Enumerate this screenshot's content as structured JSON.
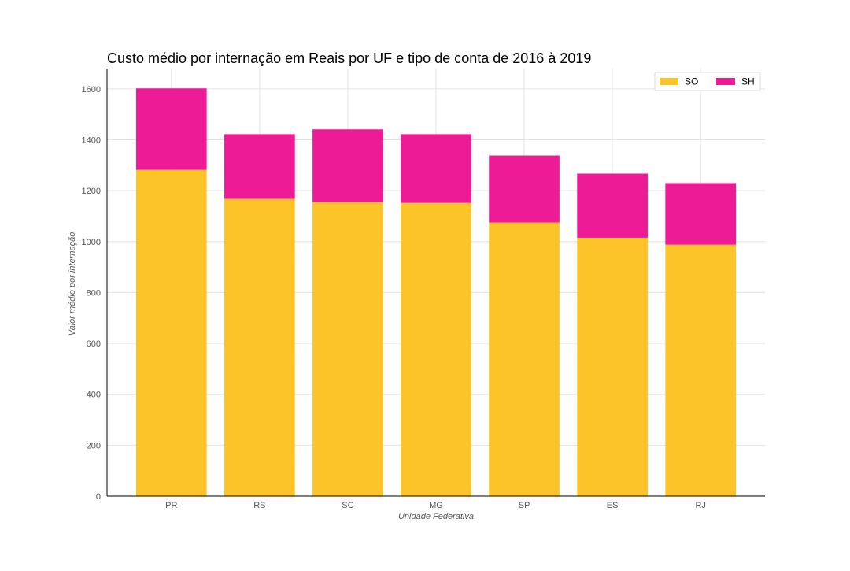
{
  "chart_data": {
    "type": "bar",
    "stacked": true,
    "title": "Custo médio por internação em Reais por UF e tipo de conta de 2016 à 2019",
    "xlabel": "Unidade Federativa",
    "ylabel": "Valor médio por internação",
    "categories": [
      "PR",
      "RS",
      "SC",
      "MG",
      "SP",
      "ES",
      "RJ"
    ],
    "series": [
      {
        "name": "SO",
        "color": "#fcc428",
        "values": [
          1282,
          1168,
          1155,
          1152,
          1075,
          1015,
          988
        ]
      },
      {
        "name": "SH",
        "color": "#ee1b96",
        "values": [
          320,
          254,
          286,
          270,
          263,
          252,
          242
        ]
      }
    ],
    "ylim": [
      0,
      1680
    ],
    "yticks": [
      0,
      200,
      400,
      600,
      800,
      1000,
      1200,
      1400,
      1600
    ],
    "grid": true,
    "legend_position": "top-right"
  }
}
